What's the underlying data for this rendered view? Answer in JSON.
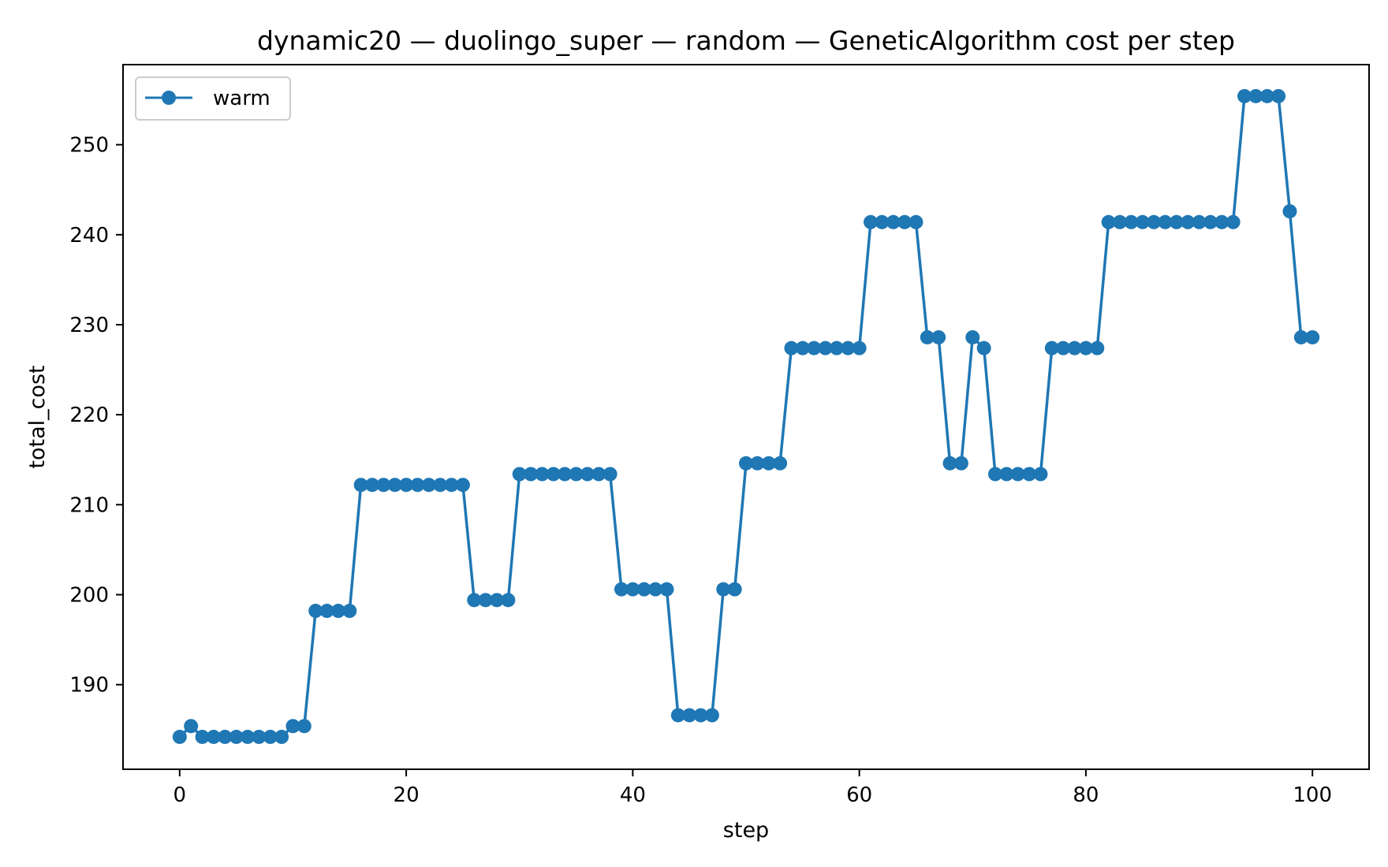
{
  "chart_data": {
    "type": "line",
    "title": "dynamic20 — duolingo_super — random — GeneticAlgorithm cost per step",
    "xlabel": "step",
    "ylabel": "total_cost",
    "xlim": [
      -5,
      105
    ],
    "ylim": [
      180.6,
      258.9
    ],
    "x_ticks": [
      0,
      20,
      40,
      60,
      80,
      100
    ],
    "y_ticks": [
      190,
      200,
      210,
      220,
      230,
      240,
      250
    ],
    "grid": false,
    "legend_position": "top-left",
    "series": [
      {
        "name": "warm",
        "color": "#1f77b4",
        "marker": "circle",
        "x": [
          0,
          1,
          2,
          3,
          4,
          5,
          6,
          7,
          8,
          9,
          10,
          11,
          12,
          13,
          14,
          15,
          16,
          17,
          18,
          19,
          20,
          21,
          22,
          23,
          24,
          25,
          26,
          27,
          28,
          29,
          30,
          31,
          32,
          33,
          34,
          35,
          36,
          37,
          38,
          39,
          40,
          41,
          42,
          43,
          44,
          45,
          46,
          47,
          48,
          49,
          50,
          51,
          52,
          53,
          54,
          55,
          56,
          57,
          58,
          59,
          60,
          61,
          62,
          63,
          64,
          65,
          66,
          67,
          68,
          69,
          70,
          71,
          72,
          73,
          74,
          75,
          76,
          77,
          78,
          79,
          80,
          81,
          82,
          83,
          84,
          85,
          86,
          87,
          88,
          89,
          90,
          91,
          92,
          93,
          94,
          95,
          96,
          97,
          98,
          99,
          100
        ],
        "y": [
          184.2,
          185.4,
          184.2,
          184.2,
          184.2,
          184.2,
          184.2,
          184.2,
          184.2,
          184.2,
          185.4,
          185.4,
          198.2,
          198.2,
          198.2,
          198.2,
          212.2,
          212.2,
          212.2,
          212.2,
          212.2,
          212.2,
          212.2,
          212.2,
          212.2,
          212.2,
          199.4,
          199.4,
          199.4,
          199.4,
          213.4,
          213.4,
          213.4,
          213.4,
          213.4,
          213.4,
          213.4,
          213.4,
          213.4,
          200.6,
          200.6,
          200.6,
          200.6,
          200.6,
          186.6,
          186.6,
          186.6,
          186.6,
          200.6,
          200.6,
          214.6,
          214.6,
          214.6,
          214.6,
          227.4,
          227.4,
          227.4,
          227.4,
          227.4,
          227.4,
          227.4,
          241.4,
          241.4,
          241.4,
          241.4,
          241.4,
          228.6,
          228.6,
          214.6,
          214.6,
          228.6,
          227.4,
          213.4,
          213.4,
          213.4,
          213.4,
          213.4,
          227.4,
          227.4,
          227.4,
          227.4,
          227.4,
          241.4,
          241.4,
          241.4,
          241.4,
          241.4,
          241.4,
          241.4,
          241.4,
          241.4,
          241.4,
          241.4,
          241.4,
          255.4,
          255.4,
          255.4,
          255.4,
          242.6,
          228.6,
          228.6
        ]
      }
    ]
  }
}
